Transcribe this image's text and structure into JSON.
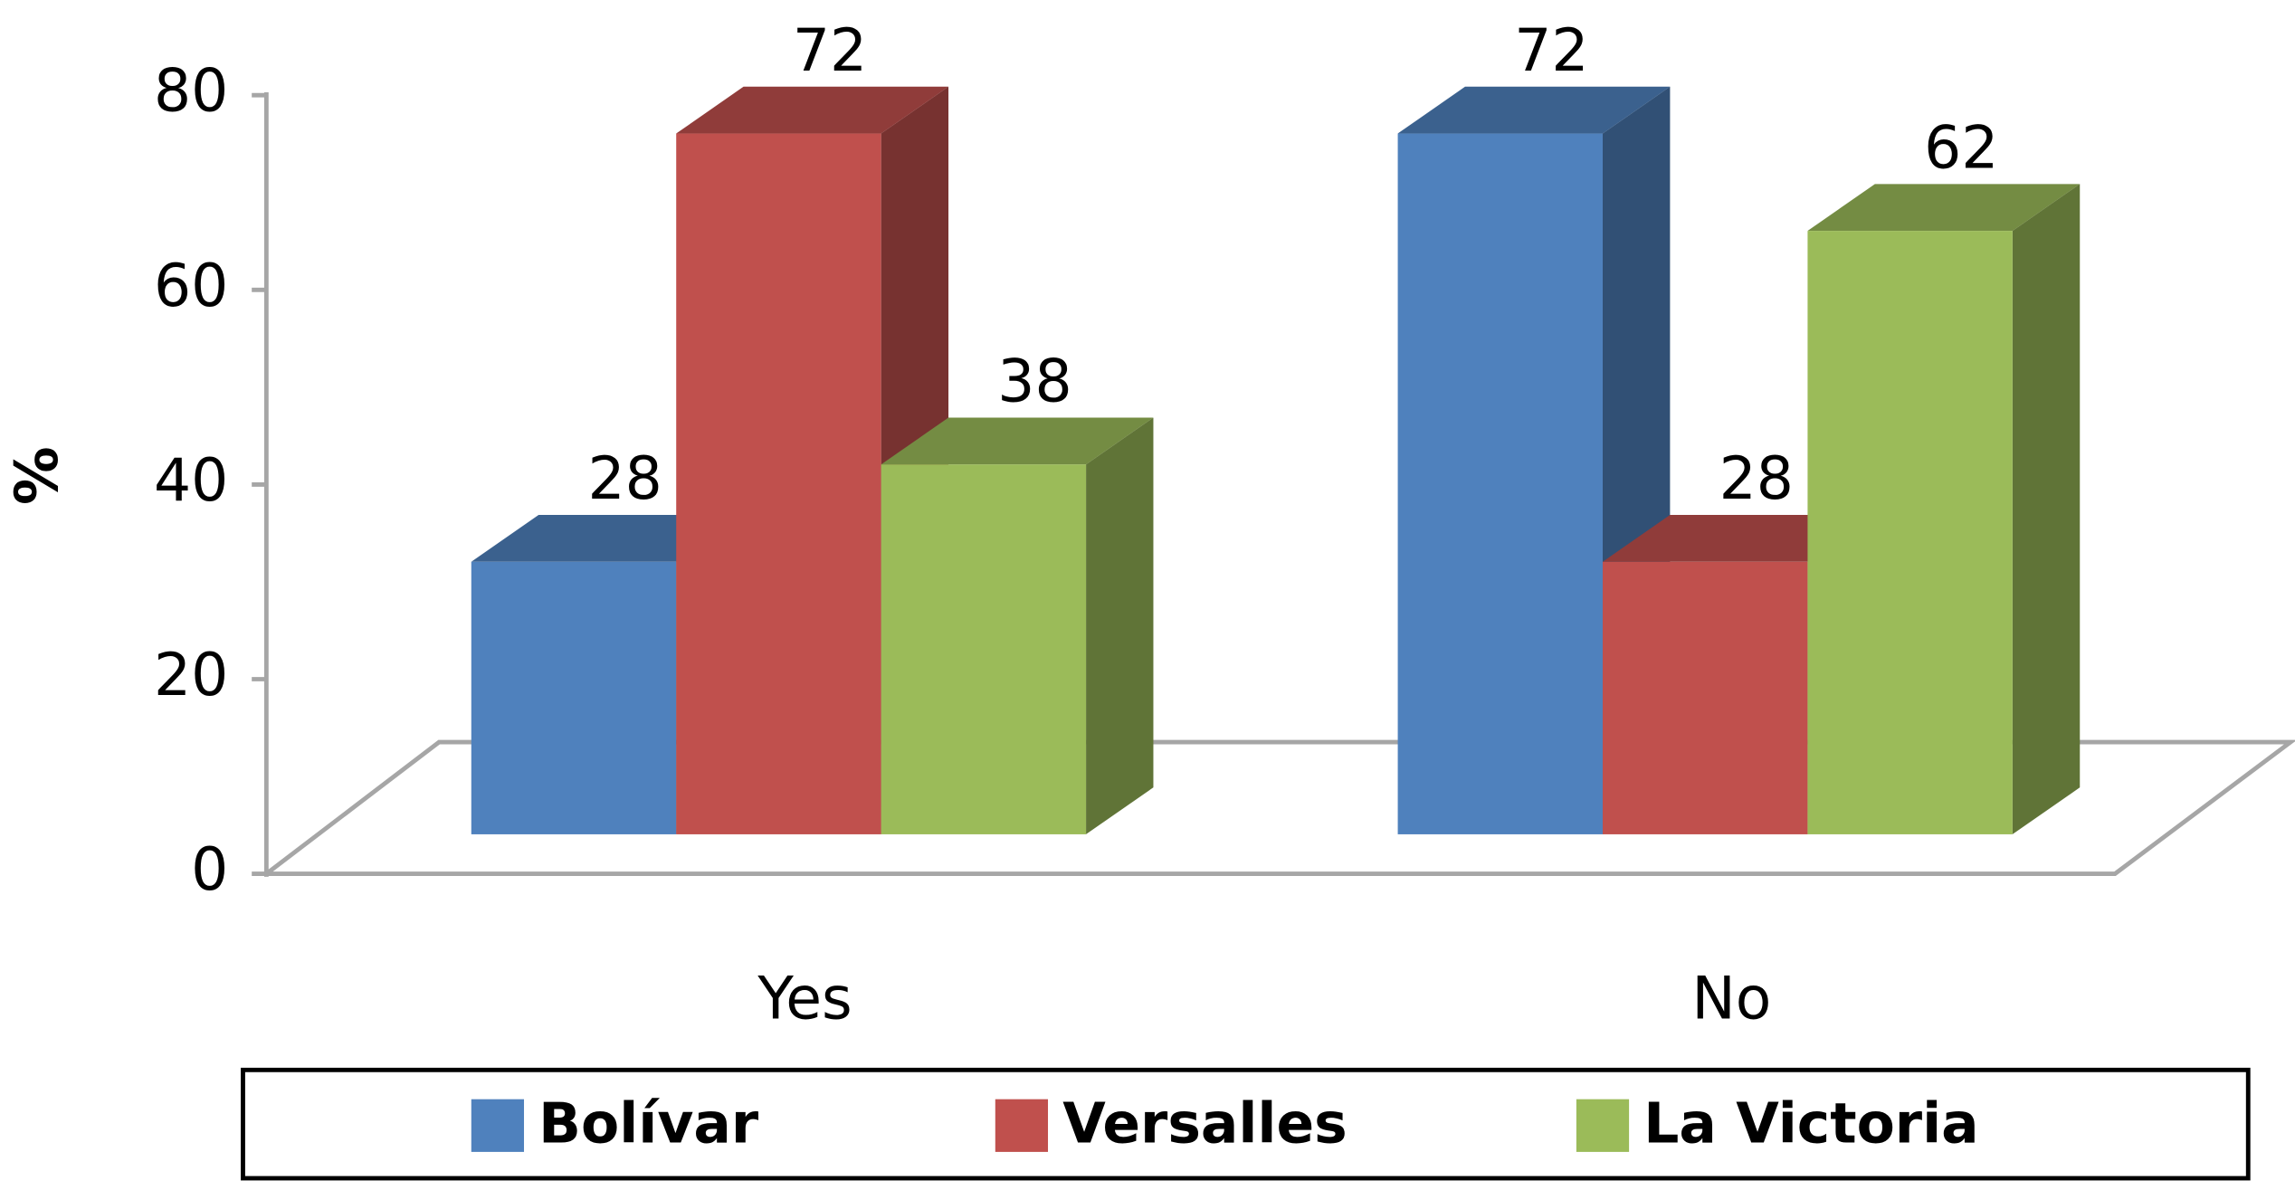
{
  "chart_data": {
    "type": "bar3d",
    "ylabel": "%",
    "categories": [
      "Yes",
      "No"
    ],
    "series": [
      {
        "name": "Bolívar",
        "color": "#4f81bd",
        "values": [
          28,
          72
        ]
      },
      {
        "name": "Versalles",
        "color": "#c0504d",
        "values": [
          72,
          28
        ]
      },
      {
        "name": "La Victoria",
        "color": "#9bbb59",
        "values": [
          38,
          62
        ]
      }
    ],
    "ylim": [
      0,
      80
    ],
    "yticks": [
      0,
      20,
      40,
      60,
      80
    ],
    "grid": false,
    "legend": "bottom"
  }
}
